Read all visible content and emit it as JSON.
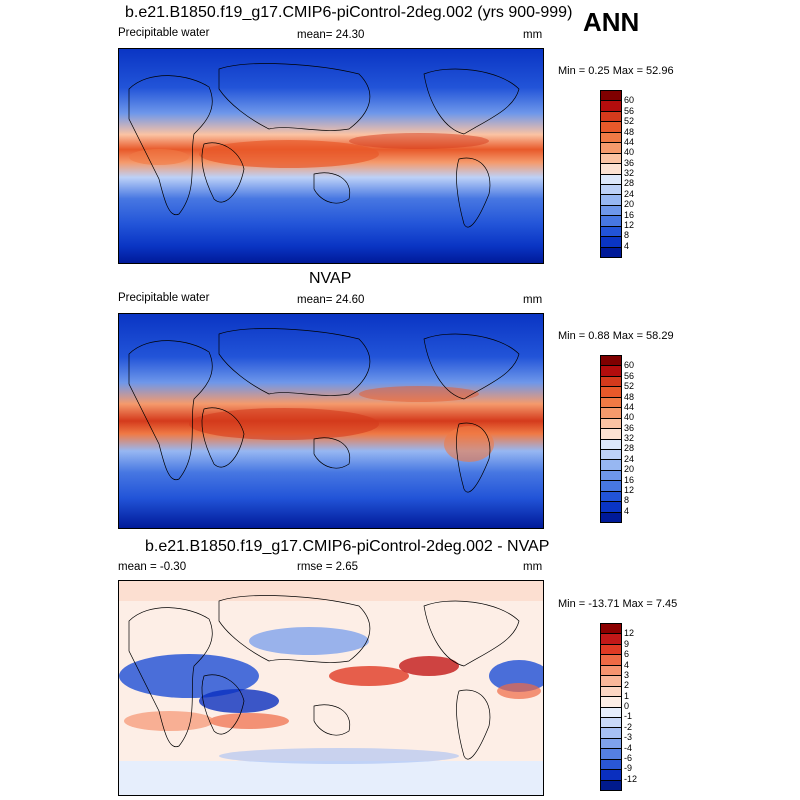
{
  "season": "ANN",
  "panels": [
    {
      "title": "b.e21.B1850.f19_g17.CMIP6-piControl-2deg.002 (yrs 900-999)",
      "left_label": "Precipitable water",
      "center_label": "mean=  24.30",
      "right_label": "mm",
      "minmax": "Min =   0.25 Max =  52.96",
      "colorbar": {
        "ticks": [
          "60",
          "56",
          "52",
          "48",
          "44",
          "40",
          "36",
          "32",
          "28",
          "24",
          "20",
          "16",
          "12",
          "8",
          "4"
        ],
        "colors": [
          "#7f0000",
          "#b30d0d",
          "#d43a1c",
          "#e8592a",
          "#f07a45",
          "#f59a6c",
          "#fbc3a3",
          "#fde2d2",
          "#dde8fb",
          "#bdd1f7",
          "#97b7f2",
          "#6e97ea",
          "#4777e2",
          "#2254d8",
          "#0a35c4",
          "#001a99"
        ]
      },
      "map_type": "absolute"
    },
    {
      "title": "NVAP",
      "left_label": "Precipitable water",
      "center_label": "mean=  24.60",
      "right_label": "mm",
      "minmax": "Min =   0.88 Max =  58.29",
      "colorbar": {
        "ticks": [
          "60",
          "56",
          "52",
          "48",
          "44",
          "40",
          "36",
          "32",
          "28",
          "24",
          "20",
          "16",
          "12",
          "8",
          "4"
        ],
        "colors": [
          "#7f0000",
          "#b30d0d",
          "#d43a1c",
          "#e8592a",
          "#f07a45",
          "#f59a6c",
          "#fbc3a3",
          "#fde2d2",
          "#dde8fb",
          "#bdd1f7",
          "#97b7f2",
          "#6e97ea",
          "#4777e2",
          "#2254d8",
          "#0a35c4",
          "#001a99"
        ]
      },
      "map_type": "absolute"
    },
    {
      "title": "b.e21.B1850.f19_g17.CMIP6-piControl-2deg.002 - NVAP",
      "left_label": "mean =  -0.30",
      "center_label": "rmse =   2.65",
      "right_label": "mm",
      "minmax": "Min = -13.71 Max =   7.45",
      "colorbar": {
        "ticks": [
          "12",
          "9",
          "6",
          "4",
          "3",
          "2",
          "1",
          "0",
          "-1",
          "-2",
          "-3",
          "-4",
          "-6",
          "-9",
          "-12"
        ],
        "colors": [
          "#8b0000",
          "#c21818",
          "#e03a24",
          "#ee6a45",
          "#f59470",
          "#f9b79a",
          "#fcd6c3",
          "#fdeee6",
          "#e6eefc",
          "#c9d9f8",
          "#a7c0f3",
          "#7fa2ec",
          "#5580e3",
          "#2a57d6",
          "#0a2fbf",
          "#001a8c"
        ]
      },
      "map_type": "difference"
    }
  ]
}
